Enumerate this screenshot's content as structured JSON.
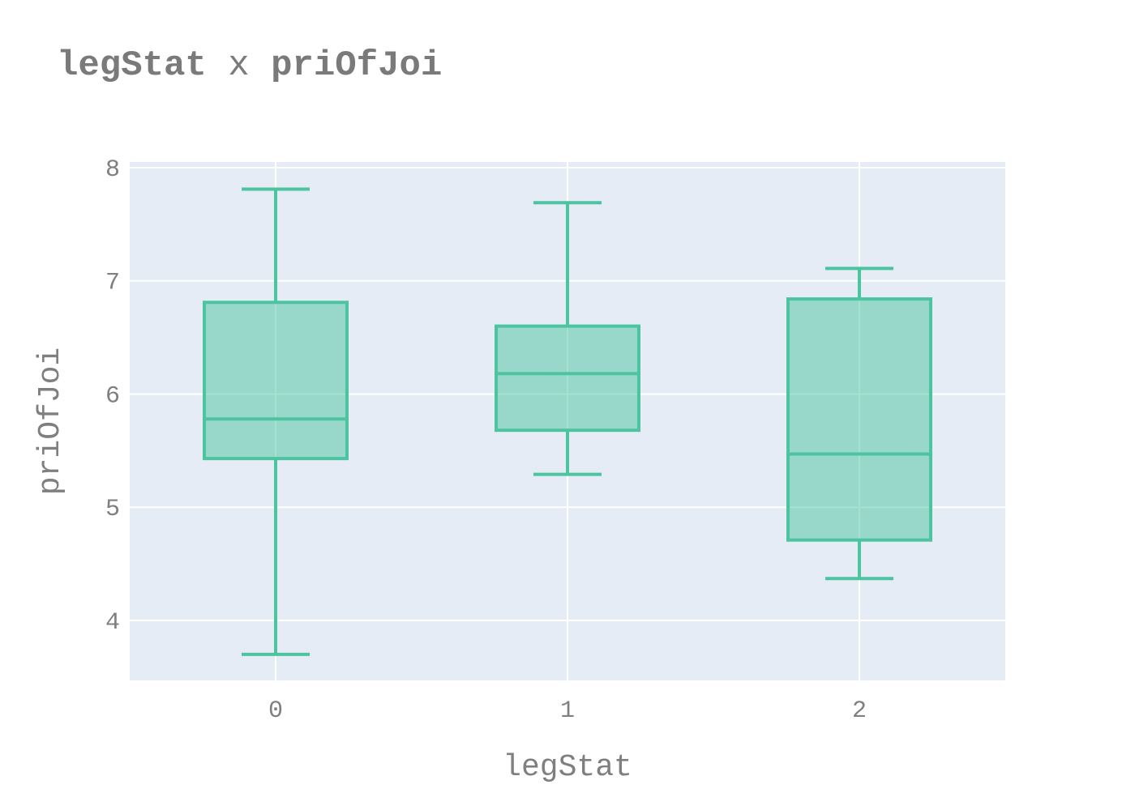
{
  "chart_data": {
    "type": "box",
    "title": {
      "left": "legStat",
      "separator": " x ",
      "right": "priOfJoi"
    },
    "xlabel": "legStat",
    "ylabel": "priOfJoi",
    "categories": [
      "0",
      "1",
      "2"
    ],
    "ylim": [
      3.47,
      8.05
    ],
    "yticks": [
      4,
      5,
      6,
      7,
      8
    ],
    "grid": true,
    "legend": "none",
    "color": "#4cc4a0",
    "fill": "rgba(76,196,160,0.5)",
    "plot_bg": "#e5ecf6",
    "boxes": [
      {
        "category": "0",
        "lowerfence": 3.7,
        "q1": 5.43,
        "median": 5.78,
        "q3": 6.81,
        "upperfence": 7.81
      },
      {
        "category": "1",
        "lowerfence": 5.29,
        "q1": 5.68,
        "median": 6.18,
        "q3": 6.6,
        "upperfence": 7.69
      },
      {
        "category": "2",
        "lowerfence": 4.37,
        "q1": 4.71,
        "median": 5.47,
        "q3": 6.84,
        "upperfence": 7.11
      }
    ]
  }
}
